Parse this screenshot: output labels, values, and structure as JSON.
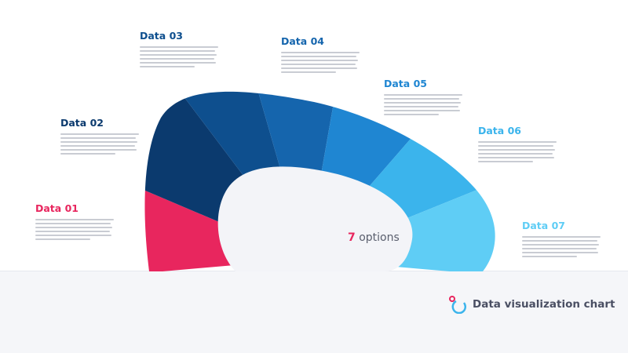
{
  "items": [
    {
      "label": "Data 01",
      "color": "#e8265e"
    },
    {
      "label": "Data 02",
      "color": "#0b3a6e"
    },
    {
      "label": "Data 03",
      "color": "#0e4f8e"
    },
    {
      "label": "Data 04",
      "color": "#1565ad"
    },
    {
      "label": "Data 05",
      "color": "#1f86d2"
    },
    {
      "label": "Data 06",
      "color": "#3bb4ec"
    },
    {
      "label": "Data 07",
      "color": "#5fcdf5"
    }
  ],
  "center": {
    "count": "7",
    "text": "options"
  },
  "footer": {
    "title": "Data visualization chart",
    "logo_colors": [
      "#e8265e",
      "#3bb4ec"
    ]
  }
}
